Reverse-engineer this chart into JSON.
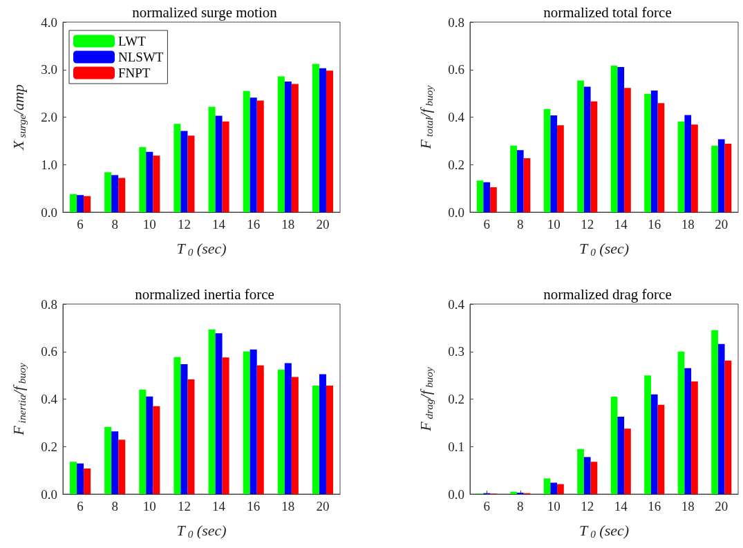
{
  "chart_data": [
    {
      "type": "bar",
      "title": "normalized surge motion",
      "xlabel": "T$_{0}$ (sec)",
      "ylabel": "X$_{surge}$/amp",
      "categories": [
        "6",
        "8",
        "10",
        "12",
        "14",
        "16",
        "18",
        "20"
      ],
      "series": [
        {
          "name": "LWT",
          "color": "#00ff00",
          "values": [
            0.38,
            0.84,
            1.37,
            1.86,
            2.22,
            2.55,
            2.86,
            3.12
          ]
        },
        {
          "name": "NLSWT",
          "color": "#0000ff",
          "values": [
            0.36,
            0.78,
            1.27,
            1.71,
            2.03,
            2.41,
            2.75,
            3.03
          ]
        },
        {
          "name": "FNPT",
          "color": "#ff0000",
          "values": [
            0.34,
            0.72,
            1.19,
            1.61,
            1.91,
            2.35,
            2.7,
            2.98
          ]
        }
      ],
      "ylim": [
        0,
        4
      ],
      "yticks": [
        {
          "value": 0,
          "label": "0.0"
        },
        {
          "value": 1,
          "label": "1.0"
        },
        {
          "value": 2,
          "label": "2.0"
        },
        {
          "value": 3,
          "label": "3.0"
        },
        {
          "value": 4,
          "label": "4.0"
        }
      ],
      "legend": "top left"
    },
    {
      "type": "bar",
      "title": "normalized total force",
      "xlabel": "T$_{0}$ (sec)",
      "ylabel": "F$_{total}$/f$_{buoy}$",
      "categories": [
        "6",
        "8",
        "10",
        "12",
        "14",
        "16",
        "18",
        "20"
      ],
      "series": [
        {
          "color": "#00ff00",
          "values": [
            0.133,
            0.28,
            0.434,
            0.554,
            0.617,
            0.498,
            0.382,
            0.28
          ]
        },
        {
          "color": "#0000ff",
          "values": [
            0.126,
            0.261,
            0.407,
            0.528,
            0.611,
            0.512,
            0.409,
            0.307
          ]
        },
        {
          "color": "#ff0000",
          "values": [
            0.105,
            0.227,
            0.366,
            0.466,
            0.523,
            0.459,
            0.369,
            0.288
          ]
        }
      ],
      "ylim": [
        0,
        0.8
      ],
      "yticks": [
        {
          "value": 0,
          "label": "0.0"
        },
        0.2,
        0.4,
        0.6,
        0.8
      ]
    },
    {
      "type": "bar",
      "title": "normalized inertia force",
      "xlabel": "T$_{0}$ (sec)",
      "ylabel": "F$_{inertia}$/f$_{buoy}$",
      "categories": [
        "6",
        "8",
        "10",
        "12",
        "14",
        "16",
        "18",
        "20"
      ],
      "series": [
        {
          "color": "#00ff00",
          "values": [
            0.136,
            0.283,
            0.44,
            0.577,
            0.693,
            0.601,
            0.524,
            0.457
          ]
        },
        {
          "color": "#0000ff",
          "values": [
            0.129,
            0.264,
            0.411,
            0.547,
            0.677,
            0.609,
            0.551,
            0.505
          ]
        },
        {
          "color": "#ff0000",
          "values": [
            0.108,
            0.229,
            0.37,
            0.483,
            0.575,
            0.542,
            0.493,
            0.457
          ]
        }
      ],
      "ylim": [
        0,
        0.8
      ],
      "yticks": [
        {
          "value": 0,
          "label": "0.0"
        },
        0.2,
        0.4,
        0.6,
        0.8
      ]
    },
    {
      "type": "bar",
      "title": "normalized drag force",
      "xlabel": "T$_{0}$ (sec)",
      "ylabel": "F$_{drag}$/f$_{buoy}$",
      "categories": [
        "6",
        "8",
        "10",
        "12",
        "14",
        "16",
        "18",
        "20"
      ],
      "series": [
        {
          "color": "#00ff00",
          "values": [
            0.001,
            0.005,
            0.033,
            0.095,
            0.205,
            0.25,
            0.3,
            0.345
          ]
        },
        {
          "color": "#0000ff",
          "values": [
            0.002,
            0.003,
            0.024,
            0.078,
            0.163,
            0.21,
            0.265,
            0.316
          ]
        },
        {
          "color": "#ff0000",
          "values": [
            0.001,
            0.002,
            0.021,
            0.068,
            0.138,
            0.188,
            0.237,
            0.281
          ]
        }
      ],
      "ylim": [
        0,
        0.4
      ],
      "yticks": [
        {
          "value": 0,
          "label": "0.0"
        },
        0.1,
        0.2,
        0.3,
        0.4
      ]
    }
  ]
}
